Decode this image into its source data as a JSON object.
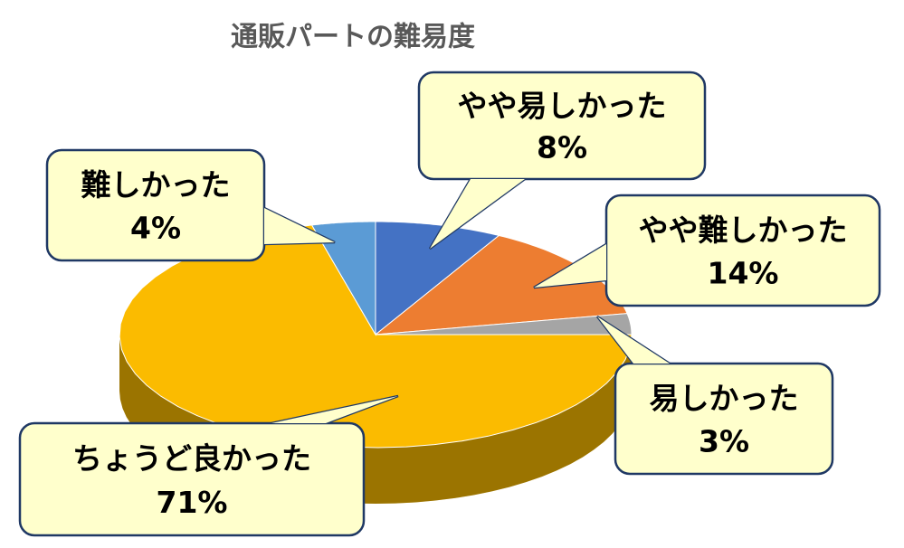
{
  "chart_data": {
    "type": "pie3d",
    "title": "通販パートの難易度",
    "categories": [
      "やや易しかった",
      "やや難しかった",
      "易しかった",
      "ちょうど良かった",
      "難しかった"
    ],
    "values": [
      8,
      14,
      3,
      71,
      4
    ],
    "value_labels": [
      "8%",
      "14%",
      "3%",
      "71%",
      "4%"
    ],
    "colors": [
      "#4472c4",
      "#ed7d31",
      "#a5a5a5",
      "#fbbb00",
      "#5b9bd5"
    ]
  }
}
